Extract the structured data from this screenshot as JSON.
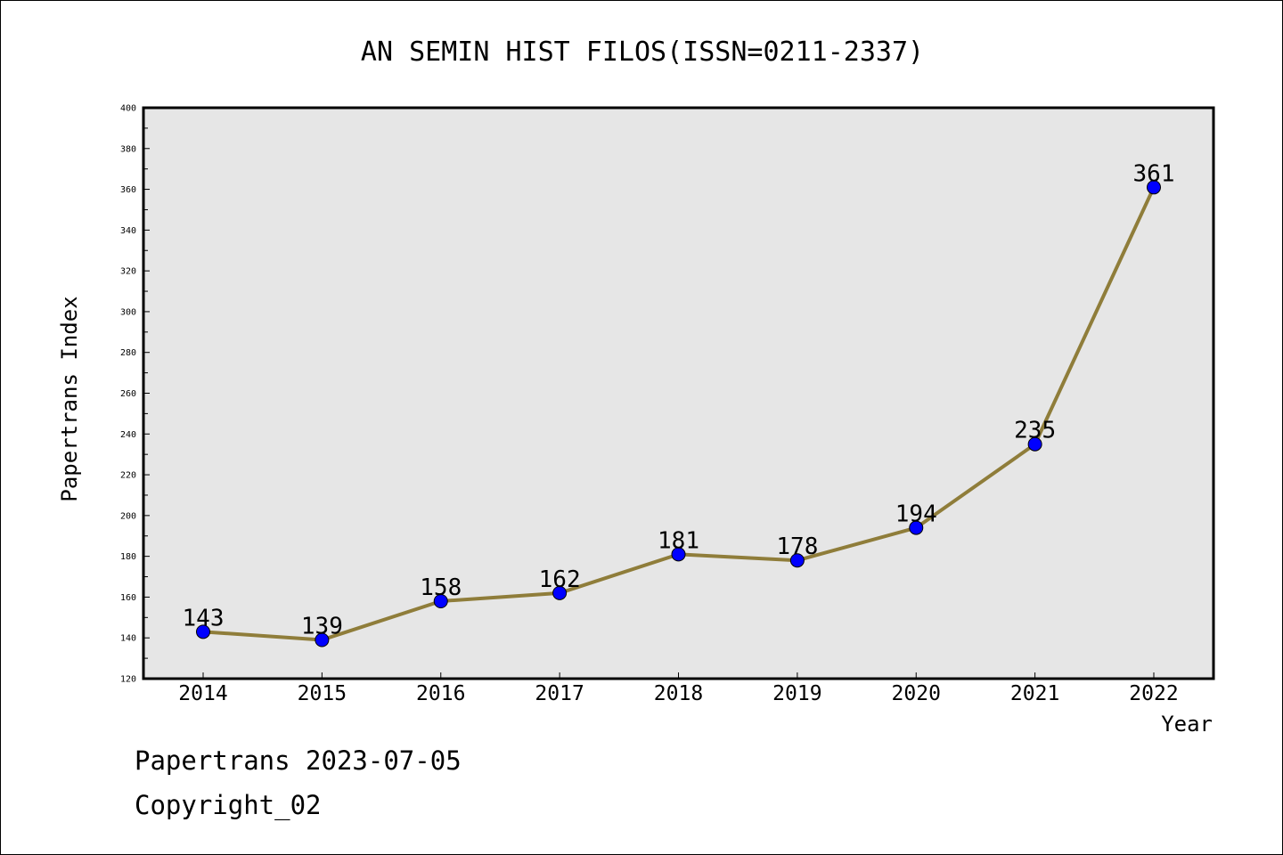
{
  "footer": {
    "line1": "Papertrans 2023-07-05",
    "line2": "Copyright_02"
  },
  "colors": {
    "plot_background": "#e6e6e6",
    "line": "#8f7d3a",
    "marker": "#0000ff"
  },
  "chart_data": {
    "type": "line",
    "title": "AN SEMIN HIST FILOS(ISSN=0211-2337)",
    "xlabel": "Year",
    "ylabel": "Papertrans Index",
    "categories": [
      "2014",
      "2015",
      "2016",
      "2017",
      "2018",
      "2019",
      "2020",
      "2021",
      "2022"
    ],
    "values": [
      143,
      139,
      158,
      162,
      181,
      178,
      194,
      235,
      361
    ],
    "data_labels": [
      "143",
      "139",
      "158",
      "162",
      "181",
      "178",
      "194",
      "235",
      "361"
    ],
    "ylim": [
      120,
      400
    ],
    "yticks": [
      120,
      140,
      160,
      180,
      200,
      220,
      240,
      260,
      280,
      300,
      320,
      340,
      360,
      380,
      400
    ],
    "ytick_labels": [
      "120",
      "140",
      "160",
      "180",
      "200",
      "220",
      "240",
      "260",
      "280",
      "300",
      "320",
      "340",
      "360",
      "380",
      "400"
    ],
    "grid": false,
    "legend": "none"
  }
}
